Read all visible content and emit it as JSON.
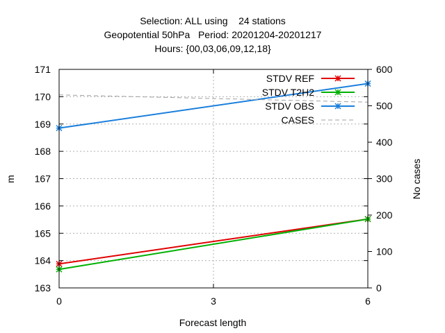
{
  "chart_data": {
    "type": "line",
    "title_lines": [
      "Selection: ALL using    24 stations",
      "Geopotential 50hPa   Period: 20201204-20201217",
      "Hours: {00,03,06,09,12,18}"
    ],
    "xlabel": "Forecast length",
    "ylabel": "m",
    "y2label": "No cases",
    "x_ticks": [
      "0",
      "3",
      "6"
    ],
    "y_ticks": [
      "163",
      "164",
      "165",
      "166",
      "167",
      "168",
      "169",
      "170",
      "171"
    ],
    "y2_ticks": [
      "0",
      "100",
      "200",
      "300",
      "400",
      "500",
      "600"
    ],
    "xlim": [
      0,
      6
    ],
    "ylim": [
      163,
      171
    ],
    "y2lim": [
      0,
      600
    ],
    "grid": true,
    "legend_position": "top-right",
    "series": [
      {
        "name": "STDV REF",
        "axis": "y",
        "color": "#e00000",
        "marker": "x",
        "x": [
          0,
          6
        ],
        "values": [
          163.88,
          165.52
        ]
      },
      {
        "name": "STDV T2H2",
        "axis": "y",
        "color": "#00b000",
        "marker": "x",
        "x": [
          0,
          6
        ],
        "values": [
          163.68,
          165.52
        ]
      },
      {
        "name": "STDV OBS",
        "axis": "y",
        "color": "#1a7fdc",
        "marker": "x",
        "x": [
          0,
          6
        ],
        "values": [
          168.85,
          170.48
        ]
      },
      {
        "name": "CASES",
        "axis": "y2",
        "color": "#a0a0a0",
        "dashed": true,
        "x": [
          0,
          6
        ],
        "values": [
          530,
          510
        ]
      }
    ]
  }
}
